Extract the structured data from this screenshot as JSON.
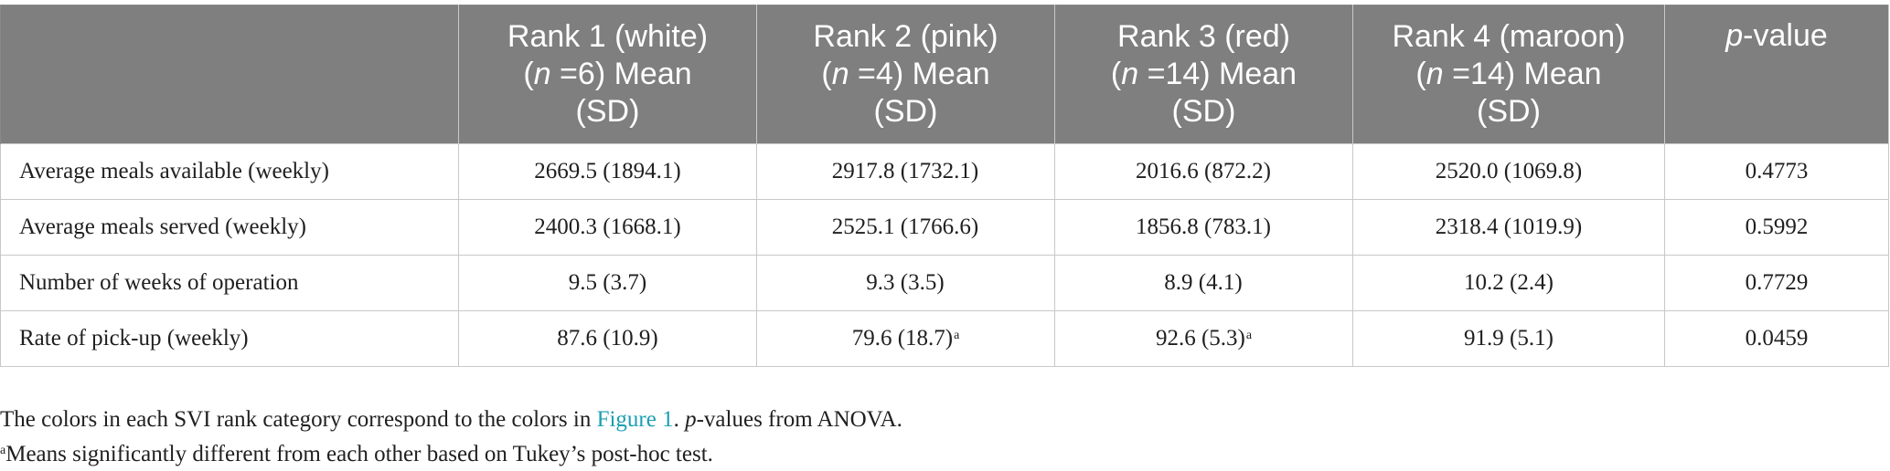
{
  "table": {
    "headers": [
      {
        "key": "corner",
        "lines": []
      },
      {
        "key": "rank1",
        "line1": "Rank 1 (white)",
        "n_label": "n",
        "n_value": " =6) Mean",
        "line3": "(SD)"
      },
      {
        "key": "rank2",
        "line1": "Rank 2 (pink)",
        "n_label": "n",
        "n_value": " =4) Mean",
        "line3": "(SD)"
      },
      {
        "key": "rank3",
        "line1": "Rank 3 (red)",
        "n_label": "n",
        "n_value": " =14) Mean",
        "line3": "(SD)"
      },
      {
        "key": "rank4",
        "line1": "Rank 4 (maroon)",
        "n_label": "n",
        "n_value": " =14) Mean",
        "line3": "(SD)"
      },
      {
        "key": "pvalue",
        "p_label": "p",
        "rest": "-value"
      }
    ],
    "rows": [
      {
        "label": "Average meals available (weekly)",
        "rank1": "2669.5 (1894.1)",
        "rank2": "2917.8 (1732.1)",
        "rank3": "2016.6 (872.2)",
        "rank4": "2520.0 (1069.8)",
        "pvalue": "0.4773",
        "rank2_mark": "",
        "rank3_mark": ""
      },
      {
        "label": "Average meals served (weekly)",
        "rank1": "2400.3 (1668.1)",
        "rank2": "2525.1 (1766.6)",
        "rank3": "1856.8 (783.1)",
        "rank4": "2318.4 (1019.9)",
        "pvalue": "0.5992",
        "rank2_mark": "",
        "rank3_mark": ""
      },
      {
        "label": "Number of weeks of operation",
        "rank1": "9.5 (3.7)",
        "rank2": "9.3 (3.5)",
        "rank3": "8.9 (4.1)",
        "rank4": "10.2 (2.4)",
        "pvalue": "0.7729",
        "rank2_mark": "",
        "rank3_mark": ""
      },
      {
        "label": "Rate of pick-up (weekly)",
        "rank1": "87.6 (10.9)",
        "rank2": "79.6 (18.7)",
        "rank3": "92.6 (5.3)",
        "rank4": "91.9 (5.1)",
        "pvalue": "0.0459",
        "rank2_mark": "a",
        "rank3_mark": "a"
      }
    ]
  },
  "footnotes": {
    "note1_before": "The colors in each SVI rank category correspond to the colors in ",
    "note1_link": "Figure 1",
    "note1_mid": ". ",
    "note1_p": "p",
    "note1_after": "-values from ANOVA.",
    "note2_mark": "a",
    "note2_text": "Means significantly different from each other based on Tukey’s post-hoc test."
  },
  "colors": {
    "header_bg": "#7e7f7e",
    "header_text": "#ffffff",
    "link": "#1a9fb2"
  }
}
